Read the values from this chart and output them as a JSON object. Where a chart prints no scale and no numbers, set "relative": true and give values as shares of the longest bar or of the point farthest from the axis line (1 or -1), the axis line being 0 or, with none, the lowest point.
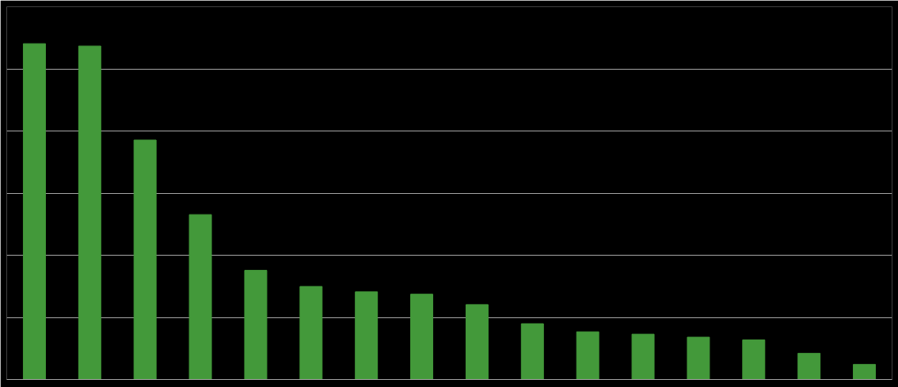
{
  "chart_data": {
    "type": "bar",
    "relative": true,
    "grid": "y",
    "categories": [
      null,
      null,
      null,
      null,
      null,
      null,
      null,
      null,
      null,
      null,
      null,
      null,
      null,
      null,
      null,
      null
    ],
    "values": [
      1,
      0.993,
      0.713,
      0.491,
      0.325,
      0.277,
      0.261,
      0.254,
      0.223,
      0.166,
      0.142,
      0.135,
      0.126,
      0.118,
      0.078,
      0.045
    ],
    "color": "#43993a"
  }
}
